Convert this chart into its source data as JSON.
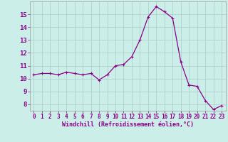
{
  "x": [
    0,
    1,
    2,
    3,
    4,
    5,
    6,
    7,
    8,
    9,
    10,
    11,
    12,
    13,
    14,
    15,
    16,
    17,
    18,
    19,
    20,
    21,
    22,
    23
  ],
  "y": [
    10.3,
    10.4,
    10.4,
    10.3,
    10.5,
    10.4,
    10.3,
    10.4,
    9.9,
    10.3,
    11.0,
    11.1,
    11.7,
    13.0,
    14.8,
    15.6,
    15.2,
    14.7,
    11.3,
    9.5,
    9.4,
    8.3,
    7.6,
    7.9
  ],
  "line_color": "#880088",
  "marker": "+",
  "marker_size": 3,
  "marker_lw": 0.8,
  "line_width": 0.9,
  "bg_color": "#cceee8",
  "grid_color": "#aaccc8",
  "xlabel": "Windchill (Refroidissement éolien,°C)",
  "xlabel_color": "#880088",
  "tick_color": "#880088",
  "ylim": [
    7.5,
    16.0
  ],
  "xlim": [
    -0.5,
    23.5
  ],
  "yticks": [
    8,
    9,
    10,
    11,
    12,
    13,
    14,
    15
  ],
  "xticks": [
    0,
    1,
    2,
    3,
    4,
    5,
    6,
    7,
    8,
    9,
    10,
    11,
    12,
    13,
    14,
    15,
    16,
    17,
    18,
    19,
    20,
    21,
    22,
    23
  ],
  "tick_fontsize": 5.5,
  "ytick_fontsize": 6.5,
  "xlabel_fontsize": 6.0,
  "spine_color": "#999999"
}
